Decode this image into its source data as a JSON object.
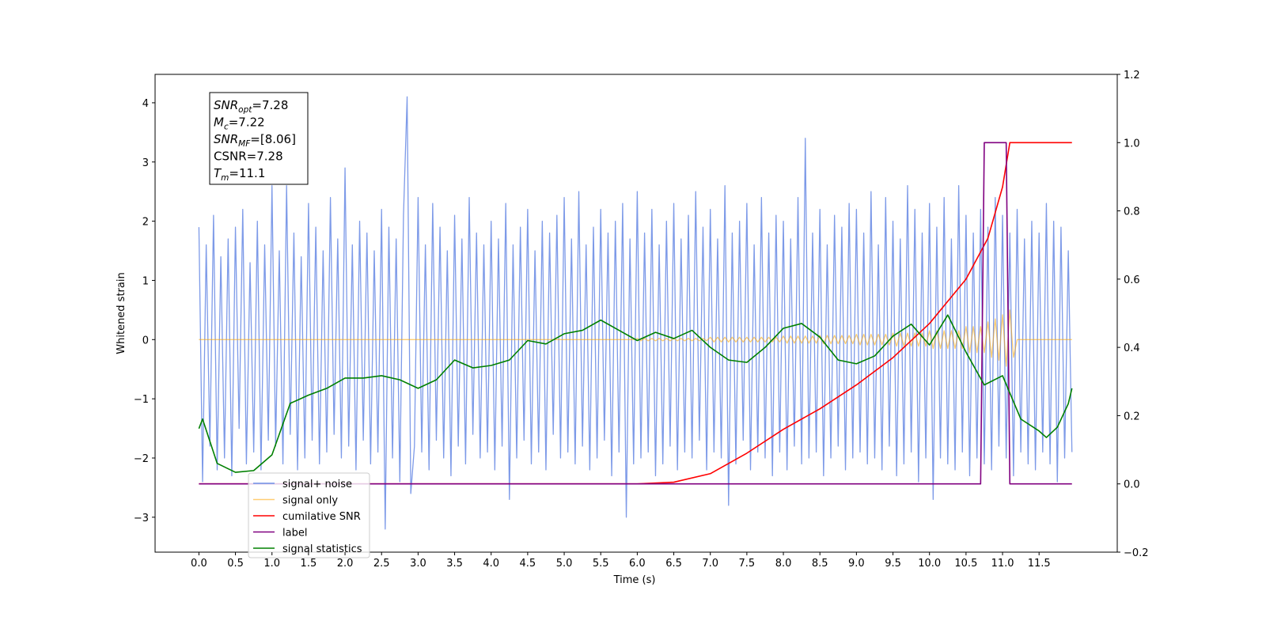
{
  "chart_data": {
    "type": "line",
    "xlabel": "Time (s)",
    "ylabel": "Whitened strain",
    "xlim": [
      -0.6,
      12.57
    ],
    "ylim": [
      -3.59,
      4.48
    ],
    "y2lim": [
      -0.2,
      1.2
    ],
    "xticks": [
      {
        "value": 0,
        "label": "0.0"
      },
      {
        "value": 0.5,
        "label": "0.5"
      },
      {
        "value": 1,
        "label": "1.0"
      },
      {
        "value": 1.5,
        "label": "1.5"
      },
      {
        "value": 2,
        "label": "2.0"
      },
      {
        "value": 2.5,
        "label": "2.5"
      },
      {
        "value": 3,
        "label": "3.0"
      },
      {
        "value": 3.5,
        "label": "3.5"
      },
      {
        "value": 4,
        "label": "4.0"
      },
      {
        "value": 4.5,
        "label": "4.5"
      },
      {
        "value": 5,
        "label": "5.0"
      },
      {
        "value": 5.5,
        "label": "5.5"
      },
      {
        "value": 6,
        "label": "6.0"
      },
      {
        "value": 6.5,
        "label": "6.5"
      },
      {
        "value": 7,
        "label": "7.0"
      },
      {
        "value": 7.5,
        "label": "7.5"
      },
      {
        "value": 8,
        "label": "8.0"
      },
      {
        "value": 8.5,
        "label": "8.5"
      },
      {
        "value": 9,
        "label": "9.0"
      },
      {
        "value": 9.5,
        "label": "9.5"
      },
      {
        "value": 10,
        "label": "10.0"
      },
      {
        "value": 10.5,
        "label": "10.5"
      },
      {
        "value": 11,
        "label": "11.0"
      },
      {
        "value": 11.5,
        "label": "11.5"
      }
    ],
    "yticks": [
      {
        "value": -3,
        "label": "−3"
      },
      {
        "value": -2,
        "label": "−2"
      },
      {
        "value": -1,
        "label": "−1"
      },
      0,
      1,
      2,
      3,
      4
    ],
    "y2ticks": [
      {
        "value": -0.2,
        "label": "−0.2"
      },
      {
        "value": 0,
        "label": "0.0"
      },
      {
        "value": 0.2,
        "label": "0.2"
      },
      {
        "value": 0.4,
        "label": "0.4"
      },
      {
        "value": 0.6,
        "label": "0.6"
      },
      {
        "value": 0.8,
        "label": "0.8"
      },
      {
        "value": 1,
        "label": "1.0"
      },
      {
        "value": 1.2,
        "label": "1.2"
      }
    ],
    "grid": false,
    "legend": "lower left",
    "annotations": [
      {
        "base": "SNR",
        "sub": "opt",
        "text": "=7.28"
      },
      {
        "base": "M",
        "sub": "c",
        "text": "=7.22"
      },
      {
        "base": "SNR",
        "sub": "MF",
        "text": "=[8.06]"
      },
      {
        "base": "CSNR",
        "text": "=7.28"
      },
      {
        "base": "T",
        "sub": "m",
        "text": "=11.1"
      }
    ],
    "x": [
      0,
      0.05,
      0.1,
      0.15,
      0.2,
      0.25,
      0.3,
      0.35,
      0.4,
      0.45,
      0.5,
      0.55,
      0.6,
      0.65,
      0.7,
      0.75,
      0.8,
      0.85,
      0.9,
      0.95,
      1,
      1.05,
      1.1,
      1.15,
      1.2,
      1.25,
      1.3,
      1.35,
      1.4,
      1.45,
      1.5,
      1.55,
      1.6,
      1.65,
      1.7,
      1.75,
      1.8,
      1.85,
      1.9,
      1.95,
      2,
      2.05,
      2.1,
      2.15,
      2.2,
      2.25,
      2.3,
      2.35,
      2.4,
      2.45,
      2.5,
      2.55,
      2.6,
      2.65,
      2.7,
      2.75,
      2.8,
      2.85,
      2.9,
      2.95,
      3,
      3.05,
      3.1,
      3.15,
      3.2,
      3.25,
      3.3,
      3.35,
      3.4,
      3.45,
      3.5,
      3.55,
      3.6,
      3.65,
      3.7,
      3.75,
      3.8,
      3.85,
      3.9,
      3.95,
      4,
      4.05,
      4.1,
      4.15,
      4.2,
      4.25,
      4.3,
      4.35,
      4.4,
      4.45,
      4.5,
      4.55,
      4.6,
      4.65,
      4.7,
      4.75,
      4.8,
      4.85,
      4.9,
      4.95,
      5,
      5.05,
      5.1,
      5.15,
      5.2,
      5.25,
      5.3,
      5.35,
      5.4,
      5.45,
      5.5,
      5.55,
      5.6,
      5.65,
      5.7,
      5.75,
      5.8,
      5.85,
      5.9,
      5.95,
      6,
      6.05,
      6.1,
      6.15,
      6.2,
      6.25,
      6.3,
      6.35,
      6.4,
      6.45,
      6.5,
      6.55,
      6.6,
      6.65,
      6.7,
      6.75,
      6.8,
      6.85,
      6.9,
      6.95,
      7,
      7.05,
      7.1,
      7.15,
      7.2,
      7.25,
      7.3,
      7.35,
      7.4,
      7.45,
      7.5,
      7.55,
      7.6,
      7.65,
      7.7,
      7.75,
      7.8,
      7.85,
      7.9,
      7.95,
      8,
      8.05,
      8.1,
      8.15,
      8.2,
      8.25,
      8.3,
      8.35,
      8.4,
      8.45,
      8.5,
      8.55,
      8.6,
      8.65,
      8.7,
      8.75,
      8.8,
      8.85,
      8.9,
      8.95,
      9,
      9.05,
      9.1,
      9.15,
      9.2,
      9.25,
      9.3,
      9.35,
      9.4,
      9.45,
      9.5,
      9.55,
      9.6,
      9.65,
      9.7,
      9.75,
      9.8,
      9.85,
      9.9,
      9.95,
      10,
      10.05,
      10.1,
      10.15,
      10.2,
      10.25,
      10.3,
      10.35,
      10.4,
      10.45,
      10.5,
      10.55,
      10.6,
      10.65,
      10.7,
      10.75,
      10.8,
      10.85,
      10.9,
      10.95,
      11,
      11.05,
      11.1,
      11.15,
      11.2,
      11.25,
      11.3,
      11.35,
      11.4,
      11.45,
      11.5,
      11.55,
      11.6,
      11.65,
      11.7,
      11.75,
      11.8,
      11.85,
      11.9,
      11.95
    ],
    "series": [
      {
        "name": "signal+ noise",
        "color": "#6f8fe6",
        "values": [
          1.9,
          -2.4,
          1.6,
          -1.8,
          2.1,
          -2.2,
          1.4,
          -2.0,
          1.7,
          -2.3,
          1.9,
          -1.5,
          2.2,
          -2.1,
          1.3,
          -1.9,
          2.0,
          -2.2,
          1.6,
          -1.7,
          2.6,
          -1.8,
          1.5,
          -2.1,
          2.6,
          -1.6,
          1.8,
          -2.2,
          1.4,
          -2.0,
          2.3,
          -1.7,
          1.9,
          -2.1,
          1.5,
          -1.9,
          2.4,
          -1.6,
          1.7,
          -2.0,
          2.9,
          -1.8,
          1.6,
          -2.2,
          2.0,
          -1.7,
          1.8,
          -2.1,
          1.5,
          -1.9,
          2.2,
          -3.2,
          1.9,
          -2.0,
          1.7,
          -2.4,
          2.1,
          4.1,
          -2.6,
          -1.8,
          2.4,
          -1.9,
          1.6,
          -2.2,
          2.3,
          -1.7,
          1.9,
          -2.0,
          1.5,
          -2.3,
          2.1,
          -1.8,
          1.7,
          -2.1,
          2.4,
          -1.6,
          1.8,
          -2.0,
          1.6,
          -1.9,
          2.0,
          -2.2,
          1.7,
          -1.8,
          2.3,
          -2.7,
          1.6,
          -2.0,
          1.9,
          -1.7,
          2.2,
          -2.1,
          1.5,
          -1.9,
          2.0,
          -2.2,
          1.8,
          -1.6,
          2.1,
          -2.0,
          2.4,
          -1.9,
          1.7,
          -2.1,
          2.5,
          -1.8,
          1.6,
          -2.2,
          1.9,
          -2.0,
          2.2,
          -1.7,
          1.8,
          -2.3,
          2.0,
          -1.9,
          2.3,
          -3.0,
          1.7,
          -2.1,
          2.5,
          -2.0,
          1.8,
          -1.9,
          2.2,
          -2.3,
          1.6,
          -2.1,
          2.0,
          -1.8,
          2.3,
          -2.2,
          1.7,
          -1.9,
          2.1,
          -2.0,
          2.5,
          -1.7,
          1.9,
          -2.2,
          2.2,
          -1.9,
          1.7,
          -2.0,
          2.6,
          -2.8,
          1.8,
          -2.1,
          2.0,
          -1.7,
          2.3,
          -2.2,
          1.6,
          -1.9,
          2.4,
          -2.0,
          1.8,
          -2.3,
          2.1,
          -1.9,
          2.0,
          -2.2,
          1.7,
          -1.8,
          2.4,
          -2.1,
          3.4,
          -2.0,
          1.8,
          -1.9,
          2.2,
          -2.3,
          1.6,
          -2.0,
          2.1,
          -1.8,
          1.9,
          -2.2,
          2.3,
          -2.0,
          2.2,
          -1.9,
          1.8,
          -2.1,
          2.5,
          -2.0,
          1.6,
          -2.2,
          2.4,
          -1.8,
          2.0,
          -2.3,
          1.7,
          -2.1,
          2.6,
          -1.9,
          2.2,
          -2.4,
          1.8,
          -2.0,
          2.3,
          -2.7,
          1.9,
          -2.0,
          2.4,
          -2.1,
          1.7,
          -2.2,
          2.6,
          -1.9,
          2.1,
          -2.3,
          1.8,
          -2.0,
          2.2,
          -2.1,
          1.9,
          -2.2,
          2.4,
          -1.8,
          2.1,
          -2.0,
          1.8,
          -2.3,
          2.2,
          -1.9,
          1.7,
          -2.1,
          2.0,
          -2.2,
          1.8,
          -1.9,
          2.3,
          -2.1,
          2.0,
          -2.4,
          1.9,
          -2.0,
          1.5,
          -1.9
        ]
      },
      {
        "name": "signal only",
        "color": "#ffa500",
        "values": [
          0,
          0,
          0,
          0,
          0,
          0,
          0,
          0,
          0,
          0,
          0,
          0,
          0,
          0,
          0,
          0,
          0,
          0,
          0,
          0,
          0,
          0,
          0,
          0,
          0,
          0,
          0,
          0,
          0,
          0,
          0,
          0,
          0,
          0,
          0,
          0,
          0,
          0,
          0,
          0,
          0,
          0,
          0,
          0,
          0,
          0,
          0,
          0,
          0,
          0,
          0,
          0,
          0,
          0,
          0,
          0,
          0,
          0,
          0,
          0,
          0,
          0,
          0,
          0,
          0,
          0,
          0,
          0,
          0,
          0,
          0,
          0,
          0,
          0,
          0,
          0,
          0,
          0,
          0,
          0,
          0,
          0,
          0,
          0,
          0,
          0,
          0,
          0,
          0,
          0,
          0,
          0,
          0,
          0,
          0,
          0,
          0,
          0,
          0,
          0,
          0,
          0,
          0,
          0,
          0,
          0,
          0,
          0,
          0,
          0,
          0,
          0,
          0,
          0,
          0,
          0,
          0,
          0,
          0,
          0,
          0.02,
          -0.02,
          0.02,
          -0.02,
          0.02,
          -0.02,
          0.02,
          -0.02,
          0.02,
          -0.02,
          0.02,
          -0.02,
          0.02,
          -0.02,
          0.02,
          -0.02,
          0.02,
          -0.02,
          0.02,
          -0.02,
          0.04,
          -0.04,
          0.04,
          -0.04,
          0.04,
          -0.04,
          0.04,
          -0.04,
          0.04,
          -0.04,
          0.04,
          -0.04,
          0.04,
          -0.04,
          0.04,
          -0.04,
          0.04,
          -0.04,
          0.04,
          -0.04,
          0.06,
          -0.06,
          0.06,
          -0.06,
          0.06,
          -0.06,
          0.06,
          -0.06,
          0.06,
          -0.06,
          0.07,
          -0.07,
          0.07,
          -0.07,
          0.07,
          -0.07,
          0.07,
          -0.07,
          0.07,
          -0.07,
          0.09,
          -0.09,
          0.09,
          -0.09,
          0.09,
          -0.09,
          0.09,
          -0.09,
          0.09,
          -0.09,
          0.11,
          -0.11,
          0.11,
          -0.11,
          0.11,
          -0.11,
          0.11,
          -0.11,
          0.11,
          -0.11,
          0.15,
          -0.15,
          0.15,
          -0.15,
          0.15,
          -0.15,
          0.15,
          -0.15,
          0.15,
          -0.15,
          0.22,
          -0.22,
          0.22,
          -0.22,
          0.22,
          -0.22,
          0.3,
          -0.3,
          0.35,
          -0.35,
          0.42,
          -0.45,
          0.5,
          -0.3,
          0,
          0,
          0,
          0,
          0,
          0,
          0,
          0,
          0,
          0,
          0,
          0,
          0,
          0,
          0,
          0
        ]
      },
      {
        "name": "cumilative SNR",
        "color": "#ff0000",
        "axis": "y2",
        "x": [
          0,
          6.0,
          6.5,
          7.0,
          7.5,
          8.0,
          8.5,
          9.0,
          9.5,
          10.0,
          10.5,
          10.8,
          11.0,
          11.1,
          11.15,
          11.95
        ],
        "values": [
          0,
          0,
          0.005,
          0.03,
          0.09,
          0.16,
          0.22,
          0.29,
          0.37,
          0.47,
          0.6,
          0.72,
          0.87,
          1.0,
          1.0,
          1.0
        ]
      },
      {
        "name": "label",
        "color": "#800080",
        "axis": "y2",
        "x": [
          0,
          10.7,
          10.75,
          11.05,
          11.1,
          11.95
        ],
        "values": [
          0,
          0,
          1,
          1,
          0,
          0
        ]
      },
      {
        "name": "signal statistics",
        "color": "#008000",
        "axis": "y2",
        "x": [
          0,
          0.05,
          0.25,
          0.5,
          0.75,
          1.0,
          1.25,
          1.5,
          1.75,
          2.0,
          2.25,
          2.5,
          2.75,
          3.0,
          3.25,
          3.5,
          3.75,
          4.0,
          4.25,
          4.5,
          4.75,
          5.0,
          5.25,
          5.5,
          5.75,
          6.0,
          6.25,
          6.5,
          6.75,
          7.0,
          7.25,
          7.5,
          7.75,
          8.0,
          8.25,
          8.5,
          8.75,
          9.0,
          9.25,
          9.5,
          9.75,
          10.0,
          10.25,
          10.5,
          10.75,
          11.0,
          11.25,
          11.5,
          11.6,
          11.75,
          11.9,
          11.95
        ],
        "values": [
          0.162,
          0.19,
          0.06,
          0.034,
          0.039,
          0.085,
          0.236,
          0.26,
          0.28,
          0.31,
          0.31,
          0.317,
          0.305,
          0.28,
          0.305,
          0.363,
          0.34,
          0.347,
          0.363,
          0.42,
          0.41,
          0.44,
          0.45,
          0.48,
          0.45,
          0.42,
          0.444,
          0.426,
          0.45,
          0.4,
          0.363,
          0.356,
          0.4,
          0.456,
          0.47,
          0.43,
          0.363,
          0.352,
          0.375,
          0.433,
          0.468,
          0.407,
          0.495,
          0.386,
          0.29,
          0.317,
          0.19,
          0.155,
          0.136,
          0.166,
          0.235,
          0.28
        ]
      }
    ]
  }
}
